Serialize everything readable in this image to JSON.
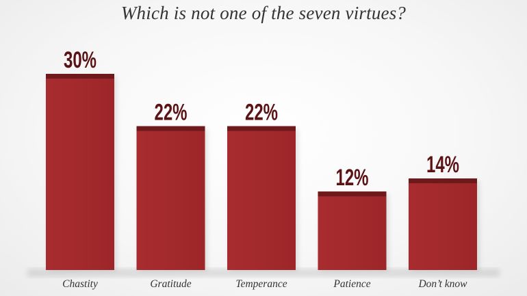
{
  "chart_data": {
    "type": "bar",
    "title": "Which is not one of the seven virtues?",
    "categories": [
      "Chastity",
      "Gratitude",
      "Temperance",
      "Patience",
      "Don’t know"
    ],
    "values": [
      30,
      22,
      22,
      12,
      14
    ],
    "data_labels": [
      "30%",
      "22%",
      "22%",
      "12%",
      "14%"
    ],
    "unit": "%",
    "ylim": [
      0,
      30
    ],
    "grid": false,
    "legend": "none",
    "colors": {
      "bar": "#a3292c",
      "bar_cap": "#6e1a1c",
      "value_label": "#5a1215",
      "text": "#333333"
    }
  }
}
